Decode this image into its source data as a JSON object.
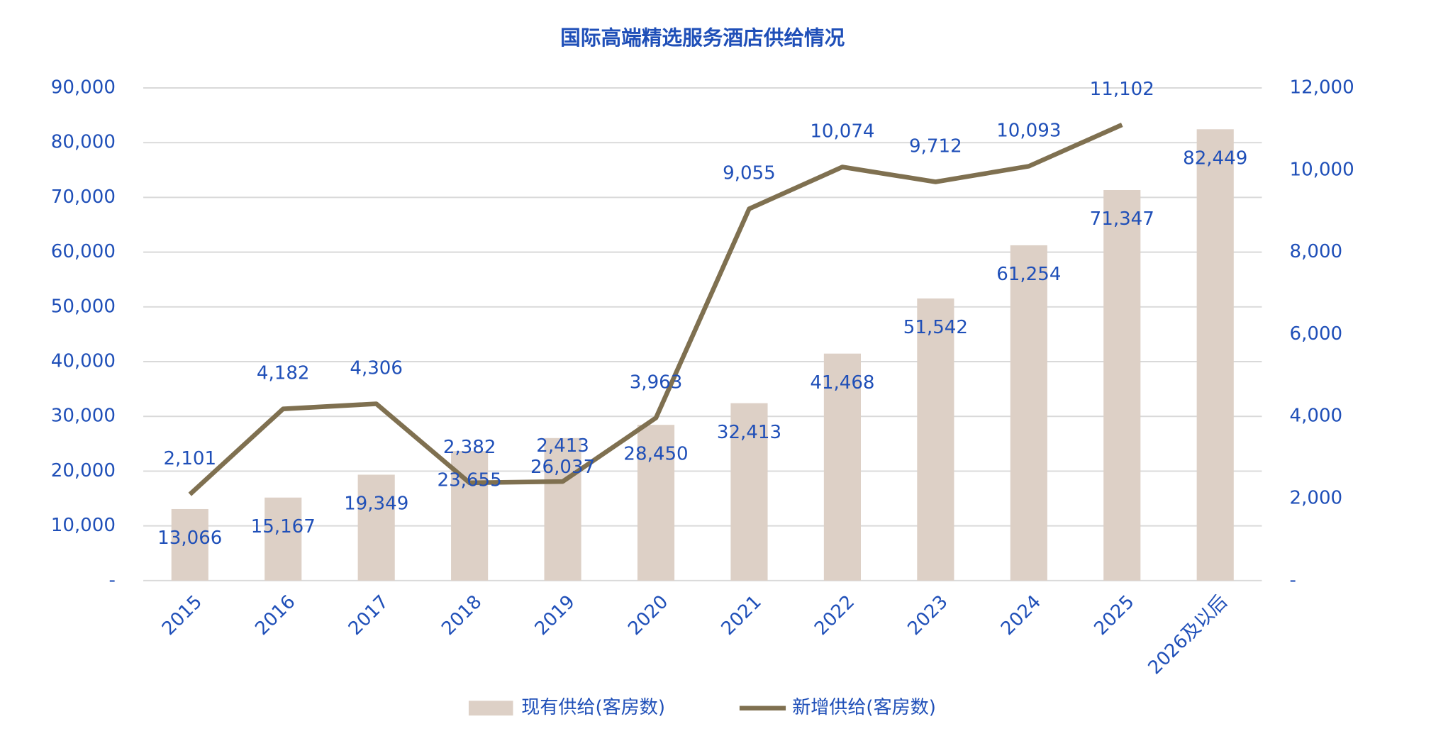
{
  "chart_data": {
    "type": "bar",
    "title": "国际高端精选服务酒店供给情况",
    "categories": [
      "2015",
      "2016",
      "2017",
      "2018",
      "2019",
      "2020",
      "2021",
      "2022",
      "2023",
      "2024",
      "2025",
      "2026及以后"
    ],
    "series": [
      {
        "name": "现有供给(客房数)",
        "type": "bar",
        "color": "#ddd0c6",
        "values": [
          13066,
          15167,
          19349,
          23655,
          26037,
          28450,
          32413,
          41468,
          51542,
          61254,
          71347,
          82449
        ],
        "value_labels": [
          "13,066",
          "15,167",
          "19,349",
          "23,655",
          "26,037",
          "28,450",
          "32,413",
          "41,468",
          "51,542",
          "61,254",
          "71,347",
          "82,449"
        ]
      },
      {
        "name": "新增供给(客房数)",
        "type": "line",
        "axis": "y2",
        "color": "#7f7050",
        "values": [
          2101,
          4182,
          4306,
          2382,
          2413,
          3963,
          9055,
          10074,
          9712,
          10093,
          11102,
          null
        ],
        "value_labels": [
          "2,101",
          "4,182",
          "4,306",
          "2,382",
          "2,413",
          "3,963",
          "9,055",
          "10,074",
          "9,712",
          "10,093",
          "11,102",
          null
        ]
      }
    ],
    "ylim": [
      0,
      90000
    ],
    "yticks": [
      {
        "value": 0,
        "label": "-"
      },
      {
        "value": 10000,
        "label": "10,000"
      },
      {
        "value": 20000,
        "label": "20,000"
      },
      {
        "value": 30000,
        "label": "30,000"
      },
      {
        "value": 40000,
        "label": "40,000"
      },
      {
        "value": 50000,
        "label": "50,000"
      },
      {
        "value": 60000,
        "label": "60,000"
      },
      {
        "value": 70000,
        "label": "70,000"
      },
      {
        "value": 80000,
        "label": "80,000"
      },
      {
        "value": 90000,
        "label": "90,000"
      }
    ],
    "y2lim": [
      0,
      12000
    ],
    "y2ticks": [
      {
        "value": 0,
        "label": "-"
      },
      {
        "value": 2000,
        "label": "2,000"
      },
      {
        "value": 4000,
        "label": "4,000"
      },
      {
        "value": 6000,
        "label": "6,000"
      },
      {
        "value": 8000,
        "label": "8,000"
      },
      {
        "value": 10000,
        "label": "10,000"
      },
      {
        "value": 12000,
        "label": "12,000"
      }
    ],
    "grid": true,
    "legend": "bottom"
  }
}
